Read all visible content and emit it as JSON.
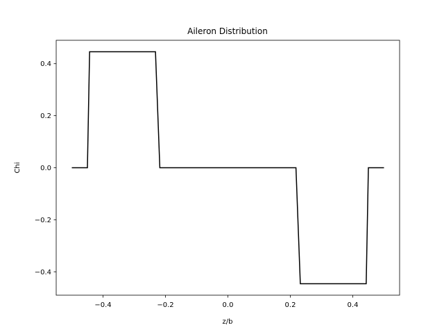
{
  "chart_data": {
    "type": "line",
    "title": "Aileron Distribution",
    "xlabel": "z/b",
    "ylabel": "Chi",
    "xlim": [
      -0.55,
      0.55
    ],
    "ylim": [
      -0.49,
      0.49
    ],
    "xticks": [
      -0.4,
      -0.2,
      0.0,
      0.2,
      0.4
    ],
    "yticks": [
      -0.4,
      -0.2,
      0.0,
      0.2,
      0.4
    ],
    "xtick_labels": [
      "−0.4",
      "−0.2",
      "0.0",
      "0.2",
      "0.4"
    ],
    "ytick_labels": [
      "−0.4",
      "−0.2",
      "0.0",
      "0.2",
      "0.4"
    ],
    "grid": false,
    "series": [
      {
        "color": "#000000",
        "x": [
          -0.5,
          -0.45,
          -0.443,
          -0.232,
          -0.218,
          0.218,
          0.232,
          0.443,
          0.45,
          0.5
        ],
        "y": [
          0.0,
          0.0,
          0.446,
          0.446,
          0.0,
          0.0,
          -0.446,
          -0.446,
          0.0,
          0.0
        ]
      }
    ]
  }
}
